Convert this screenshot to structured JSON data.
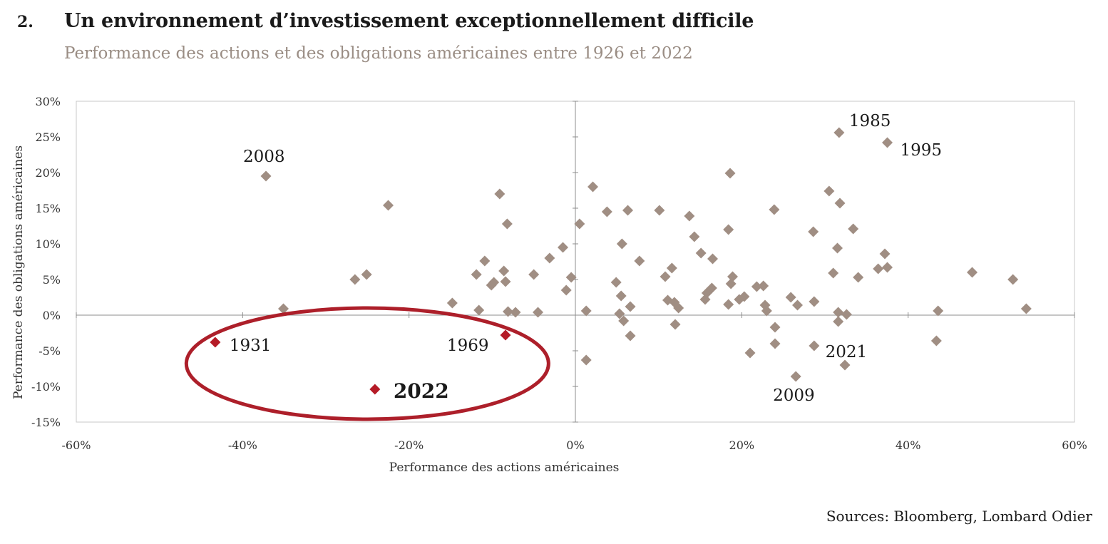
{
  "figure": {
    "number": "2.",
    "title": "Un environnement d’investissement exceptionnellement difficile",
    "subtitle": "Performance des actions et des obligations américaines entre 1926 et 2022"
  },
  "source": "Sources: Bloomberg, Lombard Odier",
  "colors": {
    "point": "#a08e83",
    "highlight": "#b51b27",
    "ellipse": "#ad1f2a",
    "axis": "#8c8c8c"
  },
  "chart_data": {
    "type": "scatter",
    "xlabel": "Performance des actions américaines",
    "ylabel": "Performance des obligations américaines",
    "xlim": [
      -60,
      60
    ],
    "ylim": [
      -15,
      30
    ],
    "x_ticks": [
      -60,
      -40,
      -20,
      0,
      20,
      40,
      60
    ],
    "y_ticks": [
      -15,
      -10,
      -5,
      0,
      5,
      10,
      15,
      20,
      25,
      30
    ],
    "x_tick_labels": [
      "-60%",
      "-40%",
      "-20%",
      "0%",
      "20%",
      "40%",
      "60%"
    ],
    "y_tick_labels": [
      "-15%",
      "-10%",
      "-5%",
      "0%",
      "5%",
      "10%",
      "15%",
      "20%",
      "25%",
      "30%"
    ],
    "grid": false,
    "points": [
      [
        -37.2,
        19.5
      ],
      [
        -35.1,
        0.9
      ],
      [
        -26.5,
        5.0
      ],
      [
        -25.1,
        5.7
      ],
      [
        -22.5,
        15.4
      ],
      [
        -14.8,
        1.7
      ],
      [
        -11.9,
        5.7
      ],
      [
        -11.6,
        0.7
      ],
      [
        -10.9,
        7.6
      ],
      [
        -10.1,
        4.2
      ],
      [
        -9.8,
        4.6
      ],
      [
        -9.1,
        17.0
      ],
      [
        -8.6,
        6.2
      ],
      [
        -8.4,
        4.7
      ],
      [
        -8.2,
        12.8
      ],
      [
        -8.1,
        0.5
      ],
      [
        -7.2,
        0.4
      ],
      [
        -5.0,
        5.7
      ],
      [
        -4.5,
        0.4
      ],
      [
        -3.1,
        8.0
      ],
      [
        -1.5,
        9.5
      ],
      [
        -1.1,
        3.5
      ],
      [
        -0.5,
        5.3
      ],
      [
        0.5,
        12.8
      ],
      [
        1.3,
        0.6
      ],
      [
        1.3,
        -6.3
      ],
      [
        2.1,
        18.0
      ],
      [
        3.8,
        14.5
      ],
      [
        4.9,
        4.6
      ],
      [
        5.3,
        0.2
      ],
      [
        5.5,
        2.7
      ],
      [
        5.6,
        10.0
      ],
      [
        5.8,
        -0.8
      ],
      [
        6.3,
        14.7
      ],
      [
        6.6,
        1.2
      ],
      [
        6.6,
        -2.9
      ],
      [
        7.7,
        7.6
      ],
      [
        10.1,
        14.7
      ],
      [
        10.8,
        5.4
      ],
      [
        11.1,
        2.1
      ],
      [
        11.6,
        6.6
      ],
      [
        11.9,
        1.8
      ],
      [
        12.0,
        -1.3
      ],
      [
        12.4,
        1.0
      ],
      [
        13.7,
        13.9
      ],
      [
        14.3,
        11.0
      ],
      [
        15.1,
        8.7
      ],
      [
        15.6,
        2.2
      ],
      [
        15.8,
        3.1
      ],
      [
        16.4,
        3.8
      ],
      [
        16.5,
        7.9
      ],
      [
        18.4,
        12.0
      ],
      [
        18.4,
        1.5
      ],
      [
        18.6,
        19.9
      ],
      [
        18.7,
        4.4
      ],
      [
        18.9,
        5.4
      ],
      [
        19.7,
        2.2
      ],
      [
        20.3,
        2.6
      ],
      [
        21.0,
        -5.3
      ],
      [
        21.8,
        4.0
      ],
      [
        22.6,
        4.1
      ],
      [
        22.8,
        1.4
      ],
      [
        23.0,
        0.6
      ],
      [
        23.9,
        14.8
      ],
      [
        24.0,
        -1.7
      ],
      [
        24.0,
        -4.0
      ],
      [
        25.9,
        2.5
      ],
      [
        26.5,
        -8.6
      ],
      [
        26.7,
        1.4
      ],
      [
        28.6,
        11.7
      ],
      [
        28.7,
        1.9
      ],
      [
        28.7,
        -4.3
      ],
      [
        30.5,
        17.4
      ],
      [
        31.0,
        5.9
      ],
      [
        31.5,
        9.4
      ],
      [
        31.6,
        0.4
      ],
      [
        31.6,
        -0.9
      ],
      [
        31.7,
        25.6
      ],
      [
        31.8,
        15.7
      ],
      [
        32.4,
        -7.0
      ],
      [
        32.6,
        0.1
      ],
      [
        33.4,
        12.1
      ],
      [
        34.0,
        5.3
      ],
      [
        36.4,
        6.5
      ],
      [
        37.2,
        8.6
      ],
      [
        37.5,
        24.2
      ],
      [
        37.5,
        6.7
      ],
      [
        43.4,
        -3.6
      ],
      [
        43.6,
        0.6
      ],
      [
        47.7,
        6.0
      ],
      [
        52.6,
        5.0
      ],
      [
        54.2,
        0.9
      ]
    ],
    "highlighted_points": [
      {
        "x": -43.3,
        "y": -3.8
      },
      {
        "x": -8.4,
        "y": -2.8
      },
      {
        "x": -24.1,
        "y": -10.4
      }
    ],
    "annotations": [
      {
        "label": "2008",
        "x": -37.2,
        "y": 19.5,
        "dx": -32,
        "dy": -20
      },
      {
        "label": "1931",
        "x": -43.3,
        "y": -3.8,
        "dx": 20,
        "dy": 12
      },
      {
        "label": "1969",
        "x": -8.4,
        "y": -2.8,
        "dx": -82,
        "dy": 22
      },
      {
        "label": "2022",
        "x": -24.1,
        "y": -10.4,
        "dx": 26,
        "dy": 12,
        "bold": true
      },
      {
        "label": "1985",
        "x": 31.7,
        "y": 25.6,
        "dx": 14,
        "dy": -9
      },
      {
        "label": "1995",
        "x": 37.5,
        "y": 24.2,
        "dx": 18,
        "dy": 18
      },
      {
        "label": "2021",
        "x": 31.6,
        "y": -0.9,
        "dx": -18,
        "dy": 50
      },
      {
        "label": "2009",
        "x": 26.5,
        "y": -8.6,
        "dx": -32,
        "dy": 34
      }
    ],
    "ellipse": {
      "cx": -25.0,
      "cy": -6.8,
      "rx": 109,
      "ry": 78
    }
  }
}
